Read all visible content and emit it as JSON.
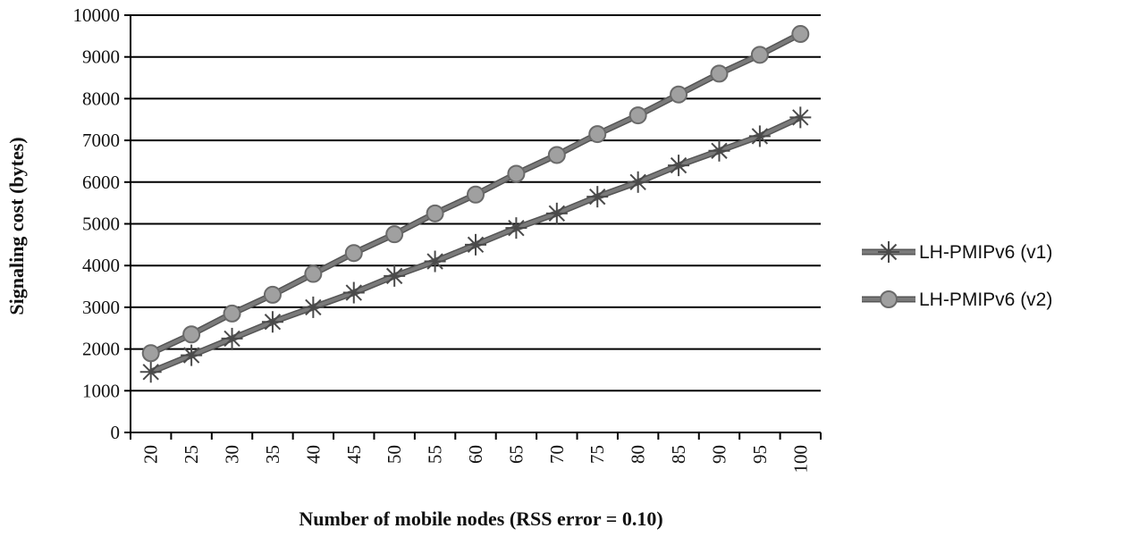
{
  "chart_data": {
    "type": "line",
    "title": "",
    "xlabel": "Number of mobile nodes (RSS error = 0.10)",
    "ylabel": "Signaling cost (bytes)",
    "categories": [
      "20",
      "25",
      "30",
      "35",
      "40",
      "45",
      "50",
      "55",
      "60",
      "65",
      "70",
      "75",
      "80",
      "85",
      "90",
      "95",
      "100"
    ],
    "ylim": [
      0,
      10000
    ],
    "yticks": [
      0,
      1000,
      2000,
      3000,
      4000,
      5000,
      6000,
      7000,
      8000,
      9000,
      10000
    ],
    "grid": true,
    "legend_position": "right",
    "series": [
      {
        "name": "LH-PMIPv6 (v1)",
        "marker": "asterisk",
        "values": [
          1450,
          1850,
          2250,
          2650,
          3000,
          3350,
          3750,
          4100,
          4500,
          4900,
          5250,
          5650,
          6000,
          6400,
          6750,
          7100,
          7550
        ]
      },
      {
        "name": "LH-PMIPv6 (v2)",
        "marker": "circle",
        "values": [
          1900,
          2350,
          2850,
          3300,
          3800,
          4300,
          4750,
          5250,
          5700,
          6200,
          6650,
          7150,
          7600,
          8100,
          8600,
          9050,
          9550
        ]
      }
    ],
    "colors": {
      "line": "#7a7a7a",
      "marker_fill": "#a0a0a0",
      "marker_stroke": "#6a6a6a",
      "grid": "#000000",
      "axis": "#000000"
    }
  }
}
